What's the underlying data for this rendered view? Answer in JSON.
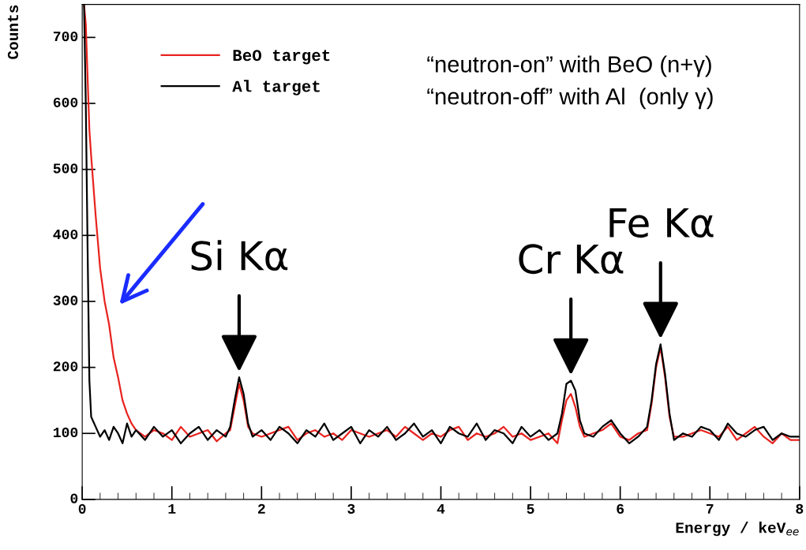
{
  "chart_data": {
    "type": "line",
    "xlabel": "Energy / keV$_{ee}$",
    "ylabel": "Counts",
    "xlim": [
      0,
      8
    ],
    "ylim": [
      0,
      750
    ],
    "xticks": [
      0,
      1,
      2,
      3,
      4,
      5,
      6,
      7,
      8
    ],
    "yticks": [
      0,
      100,
      200,
      300,
      400,
      500,
      600,
      700
    ],
    "grid": false,
    "legend": "top",
    "marker": "none",
    "line_style": "solid",
    "x": [
      0.02,
      0.04,
      0.06,
      0.08,
      0.1,
      0.15,
      0.2,
      0.25,
      0.3,
      0.35,
      0.4,
      0.45,
      0.5,
      0.55,
      0.6,
      0.7,
      0.8,
      0.9,
      1.0,
      1.1,
      1.2,
      1.3,
      1.4,
      1.5,
      1.6,
      1.65,
      1.7,
      1.75,
      1.8,
      1.85,
      1.9,
      2.0,
      2.1,
      2.2,
      2.3,
      2.4,
      2.5,
      2.6,
      2.7,
      2.8,
      2.9,
      3.0,
      3.1,
      3.2,
      3.3,
      3.4,
      3.5,
      3.6,
      3.7,
      3.8,
      3.9,
      4.0,
      4.1,
      4.2,
      4.3,
      4.4,
      4.5,
      4.6,
      4.7,
      4.8,
      4.9,
      5.0,
      5.1,
      5.2,
      5.3,
      5.35,
      5.4,
      5.45,
      5.5,
      5.55,
      5.6,
      5.7,
      5.8,
      5.9,
      6.0,
      6.1,
      6.2,
      6.3,
      6.35,
      6.4,
      6.45,
      6.5,
      6.55,
      6.6,
      6.7,
      6.8,
      6.9,
      7.0,
      7.1,
      7.2,
      7.3,
      7.4,
      7.5,
      7.6,
      7.7,
      7.8,
      7.9,
      8.0
    ],
    "series": [
      {
        "name": "BeO target",
        "color": "#e8231f",
        "values": [
          750,
          720,
          640,
          560,
          520,
          430,
          350,
          300,
          265,
          215,
          185,
          150,
          130,
          115,
          105,
          95,
          105,
          100,
          90,
          110,
          95,
          100,
          105,
          88,
          100,
          105,
          140,
          175,
          150,
          110,
          100,
          95,
          100,
          105,
          110,
          90,
          100,
          105,
          95,
          100,
          90,
          105,
          100,
          95,
          100,
          105,
          95,
          110,
          100,
          90,
          100,
          95,
          105,
          110,
          90,
          100,
          95,
          100,
          110,
          95,
          100,
          90,
          95,
          100,
          85,
          120,
          150,
          160,
          140,
          110,
          95,
          100,
          105,
          115,
          95,
          90,
          100,
          105,
          145,
          200,
          230,
          185,
          125,
          95,
          95,
          100,
          105,
          100,
          95,
          110,
          90,
          100,
          110,
          95,
          85,
          100,
          90,
          90
        ]
      },
      {
        "name": "Al target",
        "color": "#000000",
        "values": [
          750,
          600,
          380,
          180,
          125,
          110,
          95,
          105,
          90,
          110,
          100,
          85,
          115,
          95,
          105,
          90,
          110,
          95,
          105,
          85,
          100,
          110,
          90,
          105,
          95,
          110,
          150,
          185,
          160,
          115,
          95,
          105,
          90,
          110,
          100,
          85,
          105,
          95,
          115,
          90,
          100,
          110,
          85,
          105,
          95,
          110,
          90,
          100,
          115,
          95,
          105,
          85,
          110,
          100,
          95,
          115,
          90,
          105,
          100,
          85,
          110,
          95,
          105,
          90,
          100,
          130,
          175,
          180,
          165,
          120,
          100,
          95,
          110,
          120,
          100,
          85,
          95,
          110,
          150,
          205,
          235,
          190,
          130,
          90,
          100,
          95,
          110,
          105,
          90,
          115,
          100,
          95,
          105,
          110,
          90,
          100,
          95,
          95
        ]
      }
    ],
    "annotations": [
      "“neutron-on” with BeO (n+γ)",
      "“neutron-off” with Al  (only γ)",
      {
        "text": "Si Kα",
        "x": 1.75,
        "y": 190
      },
      {
        "text": "Cr Kα",
        "x": 5.45,
        "y": 185
      },
      {
        "text": "Fe Kα",
        "x": 6.45,
        "y": 240
      }
    ]
  }
}
